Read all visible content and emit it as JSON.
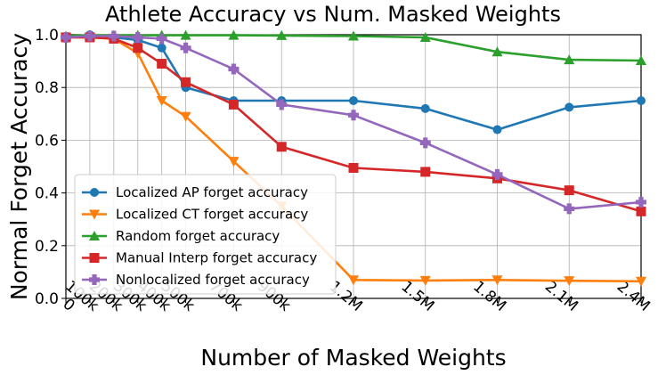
{
  "chart_data": {
    "type": "line",
    "title": "Athlete Accuracy vs Num. Masked Weights",
    "xlabel": "Number of Masked Weights",
    "ylabel": "Normal Forget Accuracy",
    "x_tick_labels": [
      "0",
      "100k",
      "200k",
      "300k",
      "400k",
      "500k",
      "700k",
      "900k",
      "1.2M",
      "1.5M",
      "1.8M",
      "2.1M",
      "2.4M"
    ],
    "x": [
      0,
      100000,
      200000,
      300000,
      400000,
      500000,
      700000,
      900000,
      1200000,
      1500000,
      1800000,
      2100000,
      2400000
    ],
    "ylim": [
      0,
      1.0
    ],
    "y_ticks": [
      "0.0",
      "0.2",
      "0.4",
      "0.6",
      "0.8",
      "1.0"
    ],
    "grid": true,
    "legend_position": "lower-left",
    "series": [
      {
        "name": "Localized AP forget accuracy",
        "color": "#1f77b4",
        "marker": "circle",
        "values": [
          0.99,
          1.0,
          0.99,
          0.98,
          0.95,
          0.8,
          0.75,
          0.75,
          0.75,
          0.72,
          0.64,
          0.725,
          0.75
        ]
      },
      {
        "name": "Localized CT forget accuracy",
        "color": "#ff7f0e",
        "marker": "triangle-down",
        "values": [
          0.99,
          0.99,
          0.985,
          0.93,
          0.75,
          0.69,
          0.52,
          0.35,
          0.07,
          0.068,
          0.07,
          0.067,
          0.065
        ]
      },
      {
        "name": "Random forget accuracy",
        "color": "#2ca02c",
        "marker": "triangle-up",
        "values": [
          0.995,
          0.998,
          0.998,
          0.998,
          0.998,
          0.998,
          0.998,
          0.997,
          0.995,
          0.99,
          0.935,
          0.905,
          0.902
        ]
      },
      {
        "name": "Manual Interp forget accuracy",
        "color": "#d62728",
        "marker": "square",
        "values": [
          0.99,
          0.99,
          0.985,
          0.95,
          0.89,
          0.82,
          0.735,
          0.575,
          0.495,
          0.48,
          0.455,
          0.41,
          0.33
        ]
      },
      {
        "name": "Nonlocalized forget accuracy",
        "color": "#9467bd",
        "marker": "plus",
        "values": [
          0.99,
          0.995,
          0.995,
          0.99,
          0.985,
          0.95,
          0.87,
          0.735,
          0.695,
          0.59,
          0.47,
          0.34,
          0.365
        ]
      }
    ]
  }
}
